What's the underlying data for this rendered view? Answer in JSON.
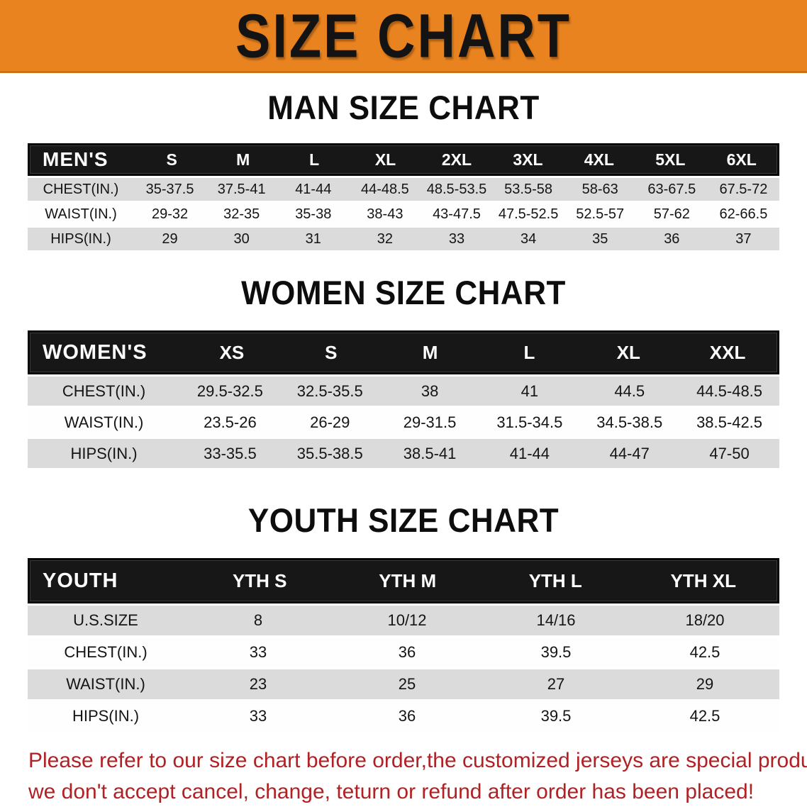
{
  "banner": {
    "title": "SIZE CHART"
  },
  "colors": {
    "banner_bg": "#E8831F",
    "header_bg": "#171717",
    "header_text": "#FFFFFF",
    "row_alt_bg": "#DBDBDB",
    "warning_text": "#B02124"
  },
  "sections": [
    {
      "id": "men",
      "title": "MAN SIZE CHART",
      "corner_label": "MEN'S",
      "sizes": [
        "S",
        "M",
        "L",
        "XL",
        "2XL",
        "3XL",
        "4XL",
        "5XL",
        "6XL"
      ],
      "rows": [
        {
          "label": "CHEST(IN.)",
          "values": [
            "35-37.5",
            "37.5-41",
            "41-44",
            "44-48.5",
            "48.5-53.5",
            "53.5-58",
            "58-63",
            "63-67.5",
            "67.5-72"
          ]
        },
        {
          "label": "WAIST(IN.)",
          "values": [
            "29-32",
            "32-35",
            "35-38",
            "38-43",
            "43-47.5",
            "47.5-52.5",
            "52.5-57",
            "57-62",
            "62-66.5"
          ]
        },
        {
          "label": "HIPS(IN.)",
          "values": [
            "29",
            "30",
            "31",
            "32",
            "33",
            "34",
            "35",
            "36",
            "37"
          ]
        }
      ]
    },
    {
      "id": "women",
      "title": "WOMEN SIZE CHART",
      "corner_label": "WOMEN'S",
      "sizes": [
        "XS",
        "S",
        "M",
        "L",
        "XL",
        "XXL"
      ],
      "rows": [
        {
          "label": "CHEST(IN.)",
          "values": [
            "29.5-32.5",
            "32.5-35.5",
            "38",
            "41",
            "44.5",
            "44.5-48.5"
          ]
        },
        {
          "label": "WAIST(IN.)",
          "values": [
            "23.5-26",
            "26-29",
            "29-31.5",
            "31.5-34.5",
            "34.5-38.5",
            "38.5-42.5"
          ]
        },
        {
          "label": "HIPS(IN.)",
          "values": [
            "33-35.5",
            "35.5-38.5",
            "38.5-41",
            "41-44",
            "44-47",
            "47-50"
          ]
        }
      ]
    },
    {
      "id": "youth",
      "title": "YOUTH SIZE CHART",
      "corner_label": "YOUTH",
      "sizes": [
        "YTH S",
        "YTH M",
        "YTH L",
        "YTH XL"
      ],
      "rows": [
        {
          "label": "U.S.SIZE",
          "values": [
            "8",
            "10/12",
            "14/16",
            "18/20"
          ]
        },
        {
          "label": "CHEST(IN.)",
          "values": [
            "33",
            "36",
            "39.5",
            "42.5"
          ]
        },
        {
          "label": "WAIST(IN.)",
          "values": [
            "23",
            "25",
            "27",
            "29"
          ]
        },
        {
          "label": "HIPS(IN.)",
          "values": [
            "33",
            "36",
            "39.5",
            "42.5"
          ]
        }
      ]
    }
  ],
  "warning": {
    "line1": "Please refer to our size chart before order,the customized jerseys are special products,",
    "line2": "we don't accept cancel, change, teturn or refund after order has been placed!"
  }
}
